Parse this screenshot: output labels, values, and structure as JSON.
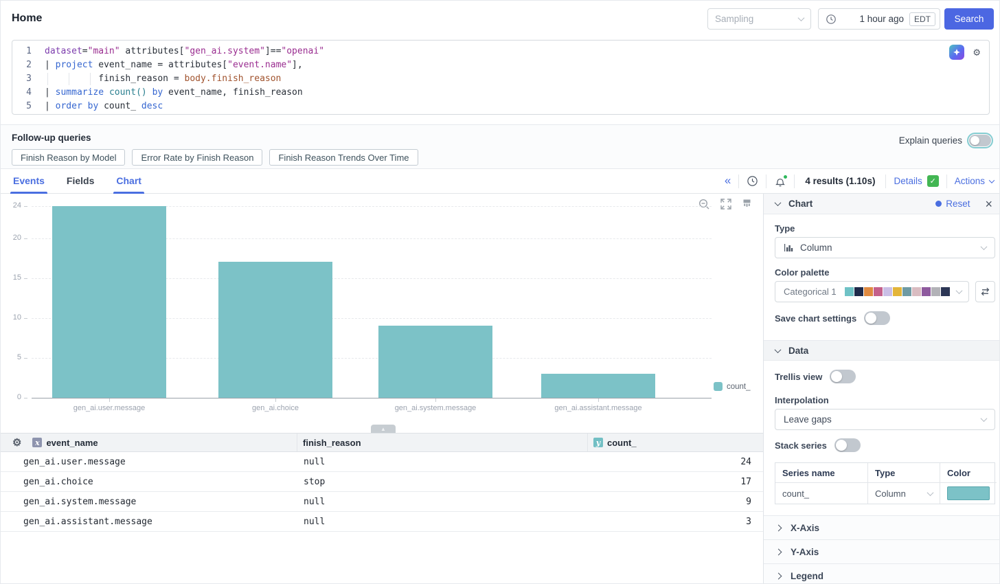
{
  "header": {
    "title": "Home",
    "sampling_placeholder": "Sampling",
    "time_range": "1 hour ago",
    "timezone": "EDT",
    "search_label": "Search"
  },
  "query": {
    "lines": [
      {
        "n": "1",
        "seg": [
          [
            "dataset",
            "kwp"
          ],
          [
            "=",
            "pl"
          ],
          [
            "\"main\"",
            "str"
          ],
          [
            " attributes[",
            "pl"
          ],
          [
            "\"gen_ai.system\"",
            "str"
          ],
          [
            "]==",
            "pl"
          ],
          [
            "\"openai\"",
            "str"
          ]
        ]
      },
      {
        "n": "2",
        "seg": [
          [
            "| ",
            "pl"
          ],
          [
            "project",
            "kw"
          ],
          [
            " event_name = attributes[",
            "pl"
          ],
          [
            "\"event.name\"",
            "str"
          ],
          [
            "],",
            "pl"
          ]
        ]
      },
      {
        "n": "3",
        "guides": true,
        "seg": [
          [
            "          finish_reason = ",
            "pl"
          ],
          [
            "body.finish_reason",
            "prop"
          ]
        ]
      },
      {
        "n": "4",
        "seg": [
          [
            "| ",
            "pl"
          ],
          [
            "summarize",
            "kw"
          ],
          [
            " ",
            "pl"
          ],
          [
            "count()",
            "fn"
          ],
          [
            " ",
            "pl"
          ],
          [
            "by",
            "kw"
          ],
          [
            " event_name, finish_reason",
            "pl"
          ]
        ]
      },
      {
        "n": "5",
        "seg": [
          [
            "| ",
            "pl"
          ],
          [
            "order",
            "kw"
          ],
          [
            " ",
            "pl"
          ],
          [
            "by",
            "kw"
          ],
          [
            " count_ ",
            "pl"
          ],
          [
            "desc",
            "kw"
          ]
        ]
      }
    ]
  },
  "followup": {
    "label": "Follow-up queries",
    "buttons": [
      "Finish Reason by Model",
      "Error Rate by Finish Reason",
      "Finish Reason Trends Over Time"
    ],
    "explain_label": "Explain queries"
  },
  "tabs": {
    "items": [
      {
        "label": "Events",
        "active": true
      },
      {
        "label": "Fields",
        "active": false
      },
      {
        "label": "Chart",
        "active": true
      }
    ]
  },
  "toolbar": {
    "results": "4 results (1.10s)",
    "details": "Details",
    "actions": "Actions"
  },
  "chart_data": {
    "type": "bar",
    "categories": [
      "gen_ai.user.message",
      "gen_ai.choice",
      "gen_ai.system.message",
      "gen_ai.assistant.message"
    ],
    "series": [
      {
        "name": "count_",
        "values": [
          24,
          17,
          9,
          3
        ]
      }
    ],
    "y_ticks": [
      0,
      5,
      10,
      15,
      20,
      24
    ],
    "ylim": [
      0,
      24
    ],
    "bar_color": "#7cc2c7",
    "grid": true,
    "legend": [
      "count_"
    ],
    "legend_position": "right-bottom",
    "xlabel": "",
    "ylabel": ""
  },
  "table": {
    "columns": [
      {
        "label": "event_name",
        "badge": "x"
      },
      {
        "label": "finish_reason",
        "badge": ""
      },
      {
        "label": "count_",
        "badge": "y"
      }
    ],
    "rows": [
      [
        "gen_ai.user.message",
        "null",
        "24"
      ],
      [
        "gen_ai.choice",
        "stop",
        "17"
      ],
      [
        "gen_ai.system.message",
        "null",
        "9"
      ],
      [
        "gen_ai.assistant.message",
        "null",
        "3"
      ]
    ]
  },
  "panel": {
    "chart_title": "Chart",
    "reset_label": "Reset",
    "type_label": "Type",
    "type_value": "Column",
    "palette_label": "Color palette",
    "palette_value": "Categorical 1",
    "palette_colors": [
      "#6fc2c6",
      "#1e2a4a",
      "#df8a41",
      "#c4608b",
      "#cabfe6",
      "#e3b53a",
      "#6f9ba4",
      "#d9bcc1",
      "#8e5a9e",
      "#b2b2b7",
      "#2c3655"
    ],
    "save_label": "Save chart settings",
    "data_title": "Data",
    "trellis_label": "Trellis view",
    "interpolation_label": "Interpolation",
    "interpolation_value": "Leave gaps",
    "stack_label": "Stack series",
    "series_headers": [
      "Series name",
      "Type",
      "Color"
    ],
    "series_rows": [
      {
        "name": "count_",
        "type": "Column",
        "color": "#7cc2c7"
      }
    ],
    "sections": [
      "X-Axis",
      "Y-Axis",
      "Legend"
    ]
  },
  "icons": {
    "gear": "⚙",
    "collapse": "«",
    "close": "×",
    "check": "✓",
    "triangle_up": "▲"
  }
}
